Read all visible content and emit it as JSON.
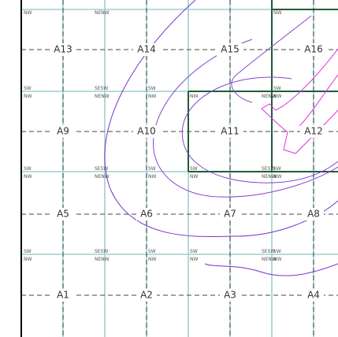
{
  "map": {
    "cells": [
      {
        "id": "A13",
        "label": "A13"
      },
      {
        "id": "A14",
        "label": "A14"
      },
      {
        "id": "A15",
        "label": "A15"
      },
      {
        "id": "A16",
        "label": "A16"
      },
      {
        "id": "A9",
        "label": "A9"
      },
      {
        "id": "A10",
        "label": "A10"
      },
      {
        "id": "A11",
        "label": "A11"
      },
      {
        "id": "A12",
        "label": "A12"
      },
      {
        "id": "A5",
        "label": "A5"
      },
      {
        "id": "A6",
        "label": "A6"
      },
      {
        "id": "A7",
        "label": "A7"
      },
      {
        "id": "A8",
        "label": "A8"
      },
      {
        "id": "A1",
        "label": "A1"
      },
      {
        "id": "A2",
        "label": "A2"
      },
      {
        "id": "A3",
        "label": "A3"
      },
      {
        "id": "A4",
        "label": "A4"
      }
    ],
    "corner_marks": {
      "nw": "NW",
      "ne": "NE",
      "sw": "SW",
      "se": "SE",
      "nenw": "NENW",
      "sesw": "SESW"
    },
    "colors": {
      "grid": "#9ecfd0",
      "frame": "#000000",
      "highlight_block": "#1f5c36",
      "contour_outer": "#7733cc",
      "contour_inner": "#dd33dd"
    }
  }
}
